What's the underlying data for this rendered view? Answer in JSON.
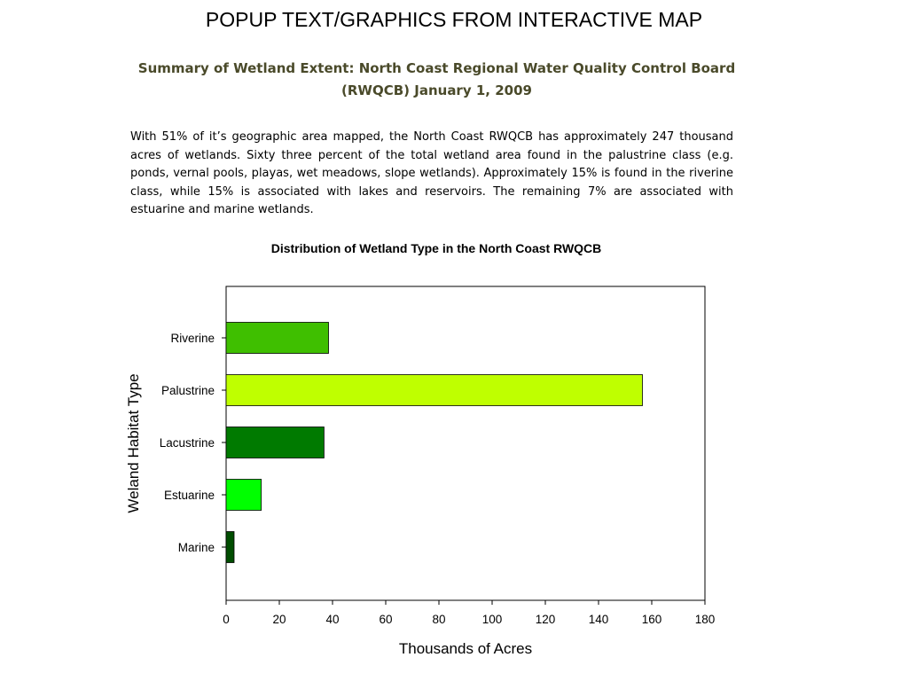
{
  "page": {
    "title": "POPUP TEXT/GRAPHICS FROM INTERACTIVE MAP",
    "summary_heading": "Summary of Wetland Extent: North Coast Regional Water Quality Control Board (RWQCB) January 1, 2009",
    "summary_body": "With 51% of it’s geographic area mapped, the North Coast RWQCB has approximately 247 thousand acres of wetlands. Sixty three percent of the total wetland area found in the palustrine class (e.g. ponds, vernal pools, playas, wet meadows, slope wetlands). Approximately 15% is found in the riverine class, while 15% is associated with lakes and reservoirs. The remaining 7% are associated with estuarine and  marine wetlands.",
    "heading_color": "#4a4a2a"
  },
  "chart_data": {
    "type": "bar",
    "orientation": "horizontal",
    "title": "Distribution of Wetland Type in the North Coast RWQCB",
    "xlabel": "Thousands of Acres",
    "ylabel": "Weland Habitat Type",
    "categories": [
      "Riverine",
      "Palustrine",
      "Lacustrine",
      "Estuarine",
      "Marine"
    ],
    "values": [
      38.5,
      156.5,
      36.8,
      13.2,
      3.0
    ],
    "colors": [
      "#3fbf00",
      "#bfff00",
      "#007a00",
      "#00ff00",
      "#004d00"
    ],
    "xlim": [
      0,
      180
    ],
    "xticks": [
      0,
      20,
      40,
      60,
      80,
      100,
      120,
      140,
      160,
      180
    ],
    "grid": false,
    "legend": "none"
  }
}
